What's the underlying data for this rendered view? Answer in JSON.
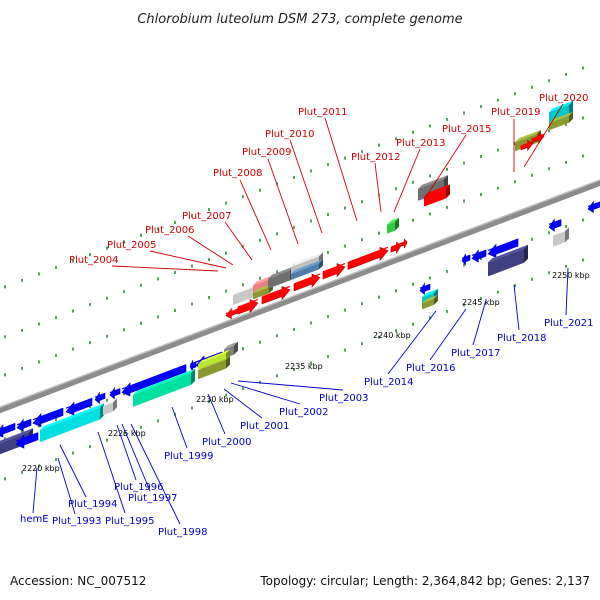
{
  "title": "Chlorobium luteolum DSM 273, complete genome",
  "footer": {
    "accession": "Accession: NC_007512",
    "topology": "Topology: circular; Length: 2,364,842 bp; Genes: 2,137"
  },
  "colors": {
    "upper_label": "#cc0000",
    "lower_label": "#0000cc",
    "backbone": "#888888",
    "tick": "#0a7a0a"
  },
  "kbp_ticks": [
    "2220 kbp",
    "2225 kbp",
    "2230 kbp",
    "2235 kbp",
    "2240 kbp",
    "2245 kbp",
    "2250 kbp"
  ],
  "upper_labels": [
    "Plut_2004",
    "Plut_2005",
    "Plut_2006",
    "Plut_2007",
    "Plut_2008",
    "Plut_2009",
    "Plut_2010",
    "Plut_2011",
    "Plut_2012",
    "Plut_2013",
    "Plut_2015",
    "Plut_2019",
    "Plut_2020"
  ],
  "lower_labels": [
    "hemE",
    "Plut_1993",
    "Plut_1994",
    "Plut_1995",
    "Plut_1996",
    "Plut_1997",
    "Plut_1998",
    "Plut_1999",
    "Plut_2000",
    "Plut_2001",
    "Plut_2002",
    "Plut_2003",
    "Plut_2014",
    "Plut_2016",
    "Plut_2017",
    "Plut_2018",
    "Plut_2021"
  ]
}
